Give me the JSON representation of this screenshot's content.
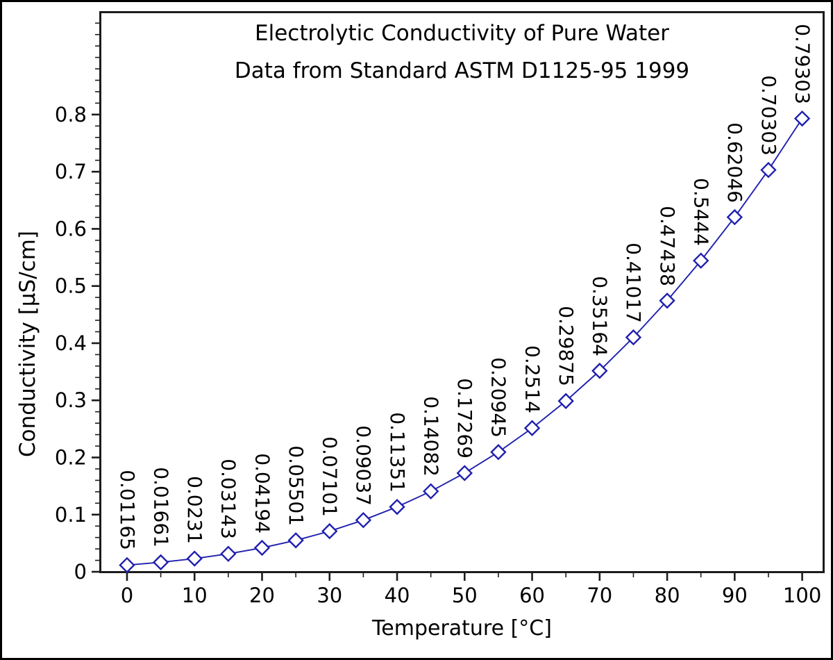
{
  "chart_data": {
    "type": "line",
    "title": "Electrolytic Conductivity of Pure Water",
    "subtitle": "Data from Standard ASTM D1125-95 1999",
    "xlabel": "Temperature [°C]",
    "ylabel": "Conductivity [µS/cm]",
    "x": [
      0,
      5,
      10,
      15,
      20,
      25,
      30,
      35,
      40,
      45,
      50,
      55,
      60,
      65,
      70,
      75,
      80,
      85,
      90,
      95,
      100
    ],
    "series": [
      {
        "name": "Conductivity",
        "values": [
          0.01165,
          0.01661,
          0.0231,
          0.03143,
          0.04194,
          0.05501,
          0.07101,
          0.09037,
          0.11351,
          0.14082,
          0.17269,
          0.20945,
          0.2514,
          0.29875,
          0.35164,
          0.41017,
          0.47438,
          0.5444,
          0.62046,
          0.70303,
          0.79303
        ]
      }
    ],
    "point_labels": [
      "0.01165",
      "0.01661",
      "0.0231",
      "0.03143",
      "0.04194",
      "0.05501",
      "0.07101",
      "0.09037",
      "0.11351",
      "0.14082",
      "0.17269",
      "0.20945",
      "0.2514",
      "0.29875",
      "0.35164",
      "0.41017",
      "0.47438",
      "0.5444",
      "0.62046",
      "0.70303",
      "0.79303"
    ],
    "x_ticks": {
      "major": [
        0,
        10,
        20,
        30,
        40,
        50,
        60,
        70,
        80,
        90,
        100
      ],
      "labels": [
        "0",
        "10",
        "20",
        "30",
        "40",
        "50",
        "60",
        "70",
        "80",
        "90",
        "100"
      ],
      "minor_step": 5
    },
    "y_ticks": {
      "major": [
        0,
        0.1,
        0.2,
        0.3,
        0.4,
        0.5,
        0.6,
        0.7,
        0.8
      ],
      "labels": [
        "0",
        "0.1",
        "0.2",
        "0.3",
        "0.4",
        "0.5",
        "0.6",
        "0.7",
        "0.8"
      ],
      "minor_step": 0.02
    },
    "xlim": [
      -4.11,
      103.33
    ],
    "ylim": [
      -0.0024,
      0.981
    ],
    "grid": false,
    "legend": null,
    "marker": "diamond-open",
    "line_color": "#1f1faf",
    "marker_color": "#1f1faf",
    "axis_color": "#1c1c1c",
    "background": "#ffffff",
    "text_color": "#000000"
  }
}
